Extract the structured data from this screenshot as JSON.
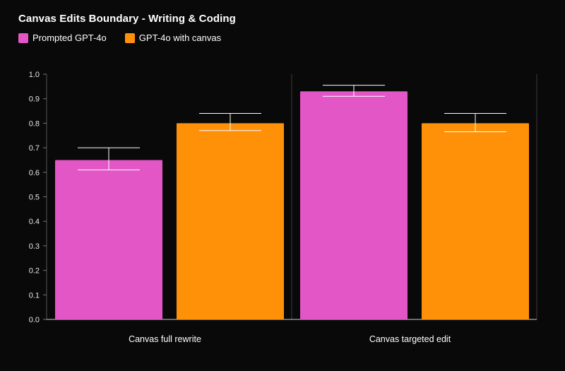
{
  "chart_data": {
    "type": "bar",
    "title": "Canvas Edits Boundary - Writing & Coding",
    "categories": [
      "Canvas full rewrite",
      "Canvas targeted edit"
    ],
    "series": [
      {
        "name": "Prompted GPT-4o",
        "color": "#e356c6",
        "values": [
          0.65,
          0.93
        ],
        "err_low": [
          0.61,
          0.91
        ],
        "err_high": [
          0.7,
          0.955
        ]
      },
      {
        "name": "GPT-4o with canvas",
        "color": "#ff9109",
        "values": [
          0.8,
          0.8
        ],
        "err_low": [
          0.77,
          0.765
        ],
        "err_high": [
          0.84,
          0.84
        ]
      }
    ],
    "yticks": [
      "0.0",
      "0.1",
      "0.2",
      "0.3",
      "0.4",
      "0.5",
      "0.6",
      "0.7",
      "0.8",
      "0.9",
      "1.0"
    ],
    "ylim": [
      0,
      1.0
    ],
    "xlabel": "",
    "ylabel": "",
    "legend_position": "top-left"
  }
}
